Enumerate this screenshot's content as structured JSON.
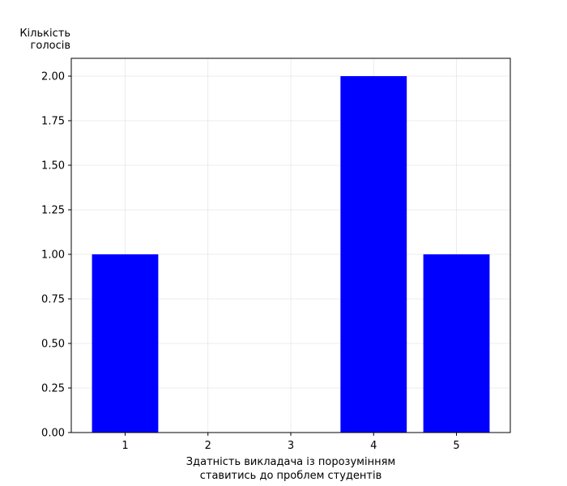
{
  "chart_data": {
    "type": "bar",
    "categories": [
      "1",
      "2",
      "3",
      "4",
      "5"
    ],
    "x": [
      1,
      2,
      3,
      4,
      5
    ],
    "values": [
      1,
      0,
      0,
      2,
      1
    ],
    "title": "",
    "ylabel_lines": [
      "Кількість",
      "голосів"
    ],
    "xlabel_lines": [
      "Здатність викладача із порозумінням",
      "ставитись до проблем студентів"
    ],
    "xlim": [
      0.35,
      5.65
    ],
    "ylim": [
      0,
      2.1
    ],
    "yticks": [
      "0.00",
      "0.25",
      "0.50",
      "0.75",
      "1.00",
      "1.25",
      "1.50",
      "1.75",
      "2.00"
    ],
    "ytick_values": [
      0,
      0.25,
      0.5,
      0.75,
      1.0,
      1.25,
      1.5,
      1.75,
      2.0
    ],
    "bar_width": 0.8,
    "grid": true,
    "legend": "none",
    "bar_color": "#0000ff"
  }
}
